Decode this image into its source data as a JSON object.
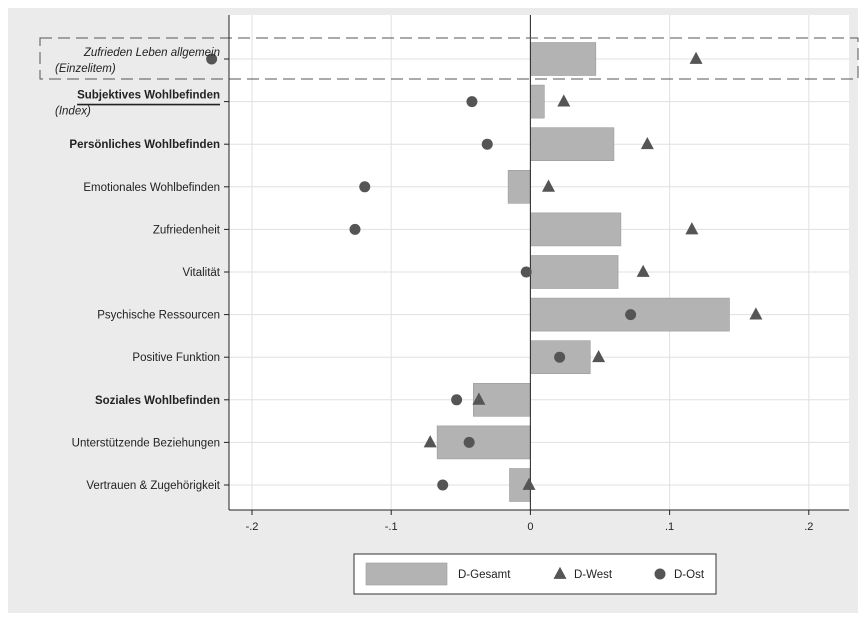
{
  "chart_data": {
    "type": "bar",
    "orientation": "horizontal",
    "xlim": [
      -0.23,
      0.2
    ],
    "x_ticks": [
      {
        "value": -0.2,
        "label": "-.2"
      },
      {
        "value": -0.1,
        "label": "-.1"
      },
      {
        "value": 0,
        "label": "0"
      },
      {
        "value": 0.1,
        "label": ".1"
      },
      {
        "value": 0.2,
        "label": ".2"
      }
    ],
    "grid": true,
    "legend_position": "bottom",
    "colors": {
      "bar": "#b3b3b3",
      "bar_border": "#9a9a9a",
      "marker": "#555555",
      "frame_bg": "#ebebeb",
      "plot_bg": "#ffffff",
      "grid": "#e0e0e0"
    },
    "categories": [
      {
        "label": "Zufrieden Leben allgemein",
        "sub": "(Einzelitem)",
        "style": "italic",
        "highlight": "dashed-box"
      },
      {
        "label": "Subjektives Wohlbefinden",
        "sub": "(Index)",
        "style": "bold-underline"
      },
      {
        "label": "Persönliches Wohlbefinden",
        "style": "bold"
      },
      {
        "label": "Emotionales Wohlbefinden",
        "style": "normal"
      },
      {
        "label": "Zufriedenheit",
        "style": "normal"
      },
      {
        "label": "Vitalität",
        "style": "normal"
      },
      {
        "label": "Psychische Ressourcen",
        "style": "normal"
      },
      {
        "label": "Positive Funktion",
        "style": "normal"
      },
      {
        "label": "Soziales Wohlbefinden",
        "style": "bold"
      },
      {
        "label": "Unterstützende Beziehungen",
        "style": "normal"
      },
      {
        "label": "Vertrauen & Zugehörigkeit",
        "style": "normal"
      }
    ],
    "series": [
      {
        "name": "D-Gesamt",
        "mark": "bar",
        "values": [
          0.047,
          0.01,
          0.06,
          -0.016,
          0.065,
          0.063,
          0.143,
          0.043,
          -0.041,
          -0.067,
          -0.015
        ]
      },
      {
        "name": "D-West",
        "mark": "triangle",
        "values": [
          0.119,
          0.024,
          0.084,
          0.013,
          0.116,
          0.081,
          0.162,
          0.049,
          -0.037,
          -0.072,
          -0.001
        ]
      },
      {
        "name": "D-Ost",
        "mark": "circle",
        "values": [
          -0.229,
          -0.042,
          -0.031,
          -0.119,
          -0.126,
          -0.003,
          0.072,
          0.021,
          -0.053,
          -0.044,
          -0.063
        ]
      }
    ]
  }
}
